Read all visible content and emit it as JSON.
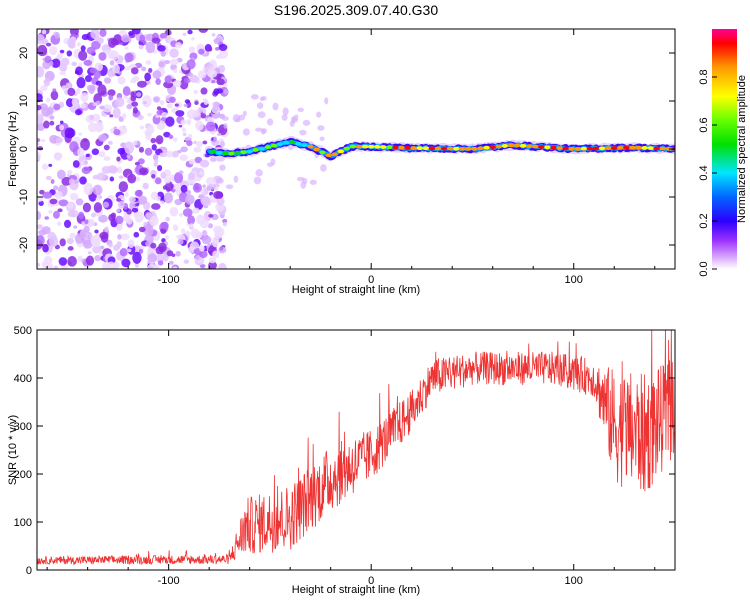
{
  "figure": {
    "title": "S196.2025.309.07.40.G30"
  },
  "chart_data": [
    {
      "type": "heatmap",
      "title": "S196.2025.309.07.40.G30",
      "xlabel": "Height of straight line (km)",
      "ylabel": "Frequency (Hz)",
      "xlim": [
        -165,
        150
      ],
      "ylim": [
        -25,
        25
      ],
      "xticks": [
        -100,
        0,
        100
      ],
      "yticks": [
        -20,
        -10,
        0,
        10,
        20
      ],
      "colorbar": {
        "label": "Normalized spectral amplitude",
        "range": [
          0,
          1
        ],
        "ticks": [
          0.0,
          0.2,
          0.4,
          0.6,
          0.8
        ]
      },
      "noise_region_x": [
        -165,
        -78
      ],
      "signal_track": [
        {
          "x": -80,
          "freq": -0.5
        },
        {
          "x": -70,
          "freq": -1.0
        },
        {
          "x": -60,
          "freq": -0.5
        },
        {
          "x": -50,
          "freq": 0.5
        },
        {
          "x": -40,
          "freq": 1.5
        },
        {
          "x": -30,
          "freq": 0.5
        },
        {
          "x": -20,
          "freq": -1.5
        },
        {
          "x": -10,
          "freq": 0.5
        },
        {
          "x": 0,
          "freq": 0.5
        },
        {
          "x": 20,
          "freq": 0.2
        },
        {
          "x": 50,
          "freq": 0.0
        },
        {
          "x": 70,
          "freq": 0.8
        },
        {
          "x": 100,
          "freq": 0.0
        },
        {
          "x": 130,
          "freq": 0.3
        },
        {
          "x": 150,
          "freq": 0.0
        }
      ]
    },
    {
      "type": "line",
      "xlabel": "Height of straight line (km)",
      "ylabel": "SNR (10 * v/v)",
      "xlim": [
        -165,
        150
      ],
      "ylim": [
        0,
        500
      ],
      "xticks": [
        -100,
        0,
        100
      ],
      "yticks": [
        0,
        100,
        200,
        300,
        400,
        500
      ],
      "series": [
        {
          "name": "SNR",
          "color": "#ee3333",
          "envelope": [
            {
              "x": -165,
              "mean": 20,
              "spread": 8
            },
            {
              "x": -70,
              "mean": 22,
              "spread": 10
            },
            {
              "x": -62,
              "mean": 90,
              "spread": 60
            },
            {
              "x": -40,
              "mean": 110,
              "spread": 70
            },
            {
              "x": -20,
              "mean": 190,
              "spread": 70
            },
            {
              "x": 0,
              "mean": 240,
              "spread": 55
            },
            {
              "x": 20,
              "mean": 330,
              "spread": 45
            },
            {
              "x": 30,
              "mean": 400,
              "spread": 40
            },
            {
              "x": 50,
              "mean": 420,
              "spread": 35
            },
            {
              "x": 90,
              "mean": 420,
              "spread": 35
            },
            {
              "x": 110,
              "mean": 400,
              "spread": 40
            },
            {
              "x": 120,
              "mean": 300,
              "spread": 120
            },
            {
              "x": 135,
              "mean": 280,
              "spread": 130
            },
            {
              "x": 150,
              "mean": 340,
              "spread": 100
            }
          ]
        }
      ]
    }
  ]
}
